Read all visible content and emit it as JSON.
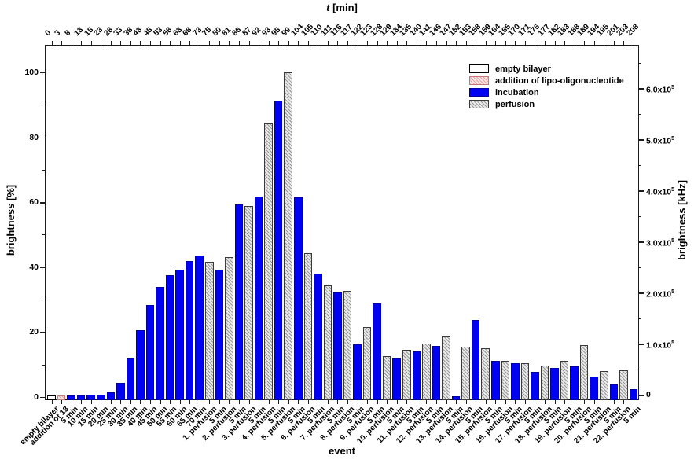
{
  "figure": {
    "top_axis_title": {
      "symbol": "t",
      "unit": "[min]"
    },
    "left_axis_title": "brightness [%]",
    "right_axis_title": "brightness [kHz]",
    "bottom_axis_title": "event"
  },
  "legend": {
    "items": [
      {
        "key": "empty",
        "label": "empty bilayer"
      },
      {
        "key": "addition",
        "label": "addition of lipo-oligonucleotide"
      },
      {
        "key": "incubation",
        "label": "incubation"
      },
      {
        "key": "perfusion",
        "label": "perfusion"
      }
    ]
  },
  "colors": {
    "incubation_blue": "#0000f2",
    "perfusion_hatch_gray": "#9a9a9a",
    "addition_hatch_pink": "#e8a2a2",
    "axis_black": "#1c1c1c",
    "background": "#ffffff"
  },
  "chart_data": {
    "type": "bar",
    "title": "",
    "xlabel_top": "t [min]",
    "xlabel_bottom": "event",
    "ylabel_left": "brightness [%]",
    "ylabel_right": "brightness [kHz]",
    "ylim_left": [
      -1,
      108
    ],
    "grid": false,
    "legend_position": "top-right-inside",
    "left_ticks_pct": [
      0,
      20,
      40,
      60,
      80,
      100
    ],
    "left_minor_ticks_pct": [
      10,
      30,
      50,
      70,
      90
    ],
    "right_ticks": [
      {
        "label": "0",
        "value_1e5_kHz": 0
      },
      {
        "label": "1.0x10^5",
        "value_1e5_kHz": 1
      },
      {
        "label": "2.0x10^5",
        "value_1e5_kHz": 2
      },
      {
        "label": "3.0x10^5",
        "value_1e5_kHz": 3
      },
      {
        "label": "4.0x10^5",
        "value_1e5_kHz": 4
      },
      {
        "label": "5.0x10^5",
        "value_1e5_kHz": 5
      },
      {
        "label": "6.0x10^5",
        "value_1e5_kHz": 6
      }
    ],
    "right_minor_ticks_1e5_kHz": [
      0.5,
      1.5,
      2.5,
      3.5,
      4.5,
      5.5,
      6.5
    ],
    "bars": [
      {
        "t_min": 0,
        "event": "empty bilayer",
        "phase": "empty",
        "brightness_pct": 0.5
      },
      {
        "t_min": 3,
        "event": "addition of 13",
        "phase": "addition",
        "brightness_pct": 0.5
      },
      {
        "t_min": 8,
        "event": "5 min",
        "phase": "incubation",
        "brightness_pct": 0.5
      },
      {
        "t_min": 13,
        "event": "10 min",
        "phase": "incubation",
        "brightness_pct": 0.5
      },
      {
        "t_min": 18,
        "event": "15 min",
        "phase": "incubation",
        "brightness_pct": 0.6
      },
      {
        "t_min": 23,
        "event": "20 min",
        "phase": "incubation",
        "brightness_pct": 0.7
      },
      {
        "t_min": 28,
        "event": "25 min",
        "phase": "incubation",
        "brightness_pct": 1.5
      },
      {
        "t_min": 33,
        "event": "30 min",
        "phase": "incubation",
        "brightness_pct": 4.4
      },
      {
        "t_min": 38,
        "event": "35 min",
        "phase": "incubation",
        "brightness_pct": 12.1
      },
      {
        "t_min": 43,
        "event": "40 min",
        "phase": "incubation",
        "brightness_pct": 20.6
      },
      {
        "t_min": 48,
        "event": "45 min",
        "phase": "incubation",
        "brightness_pct": 28.3
      },
      {
        "t_min": 53,
        "event": "50 min",
        "phase": "incubation",
        "brightness_pct": 33.9
      },
      {
        "t_min": 58,
        "event": "55 min",
        "phase": "incubation",
        "brightness_pct": 37.5
      },
      {
        "t_min": 63,
        "event": "60 min",
        "phase": "incubation",
        "brightness_pct": 39.2
      },
      {
        "t_min": 68,
        "event": "65 min",
        "phase": "incubation",
        "brightness_pct": 41.9
      },
      {
        "t_min": 73,
        "event": "70 min",
        "phase": "incubation",
        "brightness_pct": 43.6
      },
      {
        "t_min": 75,
        "event": "1. perfusion",
        "phase": "perfusion",
        "brightness_pct": 41.6
      },
      {
        "t_min": 80,
        "event": "5 min",
        "phase": "incubation",
        "brightness_pct": 39.2
      },
      {
        "t_min": 81,
        "event": "2. perfusion",
        "phase": "perfusion",
        "brightness_pct": 43.1
      },
      {
        "t_min": 86,
        "event": "5 min",
        "phase": "incubation",
        "brightness_pct": 59.3
      },
      {
        "t_min": 87,
        "event": "3. perfusion",
        "phase": "perfusion",
        "brightness_pct": 58.8
      },
      {
        "t_min": 92,
        "event": "5 min",
        "phase": "incubation",
        "brightness_pct": 61.7
      },
      {
        "t_min": 93,
        "event": "4. perfusion",
        "phase": "perfusion",
        "brightness_pct": 84.3
      },
      {
        "t_min": 98,
        "event": "5 min",
        "phase": "incubation",
        "brightness_pct": 91.3
      },
      {
        "t_min": 99,
        "event": "5. perfusion",
        "phase": "perfusion",
        "brightness_pct": 100
      },
      {
        "t_min": 104,
        "event": "5 min",
        "phase": "incubation",
        "brightness_pct": 61.5
      },
      {
        "t_min": 105,
        "event": "6. perfusion",
        "phase": "perfusion",
        "brightness_pct": 44.3
      },
      {
        "t_min": 110,
        "event": "5 min",
        "phase": "incubation",
        "brightness_pct": 38.0
      },
      {
        "t_min": 111,
        "event": "7. perfusion",
        "phase": "perfusion",
        "brightness_pct": 34.4
      },
      {
        "t_min": 116,
        "event": "5 min",
        "phase": "incubation",
        "brightness_pct": 32.2
      },
      {
        "t_min": 117,
        "event": "8. perfusion",
        "phase": "perfusion",
        "brightness_pct": 32.7
      },
      {
        "t_min": 122,
        "event": "5 min",
        "phase": "incubation",
        "brightness_pct": 16.2
      },
      {
        "t_min": 123,
        "event": "9. perfusion",
        "phase": "perfusion",
        "brightness_pct": 21.5
      },
      {
        "t_min": 128,
        "event": "5 min",
        "phase": "incubation",
        "brightness_pct": 28.8
      },
      {
        "t_min": 129,
        "event": "10. perfusion",
        "phase": "perfusion",
        "brightness_pct": 12.6
      },
      {
        "t_min": 134,
        "event": "5 min",
        "phase": "incubation",
        "brightness_pct": 12.1
      },
      {
        "t_min": 135,
        "event": "11. perfusion",
        "phase": "perfusion",
        "brightness_pct": 14.5
      },
      {
        "t_min": 140,
        "event": "5 min",
        "phase": "incubation",
        "brightness_pct": 14.0
      },
      {
        "t_min": 141,
        "event": "12. perfusion",
        "phase": "perfusion",
        "brightness_pct": 16.5
      },
      {
        "t_min": 146,
        "event": "5 min",
        "phase": "incubation",
        "brightness_pct": 15.7
      },
      {
        "t_min": 147,
        "event": "13. perfusion",
        "phase": "perfusion",
        "brightness_pct": 18.6
      },
      {
        "t_min": 152,
        "event": "5 min",
        "phase": "incubation",
        "brightness_pct": 0.2
      },
      {
        "t_min": 153,
        "event": "14. perfusion",
        "phase": "perfusion",
        "brightness_pct": 15.5
      },
      {
        "t_min": 158,
        "event": "5 min",
        "phase": "incubation",
        "brightness_pct": 23.7
      },
      {
        "t_min": 159,
        "event": "15. perfusion",
        "phase": "perfusion",
        "brightness_pct": 15.0
      },
      {
        "t_min": 164,
        "event": "5 min",
        "phase": "incubation",
        "brightness_pct": 11.2
      },
      {
        "t_min": 165,
        "event": "16. perfusion",
        "phase": "perfusion",
        "brightness_pct": 11.0
      },
      {
        "t_min": 170,
        "event": "5 min",
        "phase": "incubation",
        "brightness_pct": 10.4
      },
      {
        "t_min": 171,
        "event": "17. perfusion",
        "phase": "perfusion",
        "brightness_pct": 10.4
      },
      {
        "t_min": 176,
        "event": "5 min",
        "phase": "incubation",
        "brightness_pct": 7.7
      },
      {
        "t_min": 177,
        "event": "18. perfusion",
        "phase": "perfusion",
        "brightness_pct": 9.7
      },
      {
        "t_min": 182,
        "event": "5 min",
        "phase": "incubation",
        "brightness_pct": 9.0
      },
      {
        "t_min": 183,
        "event": "19. perfusion",
        "phase": "perfusion",
        "brightness_pct": 11.1
      },
      {
        "t_min": 188,
        "event": "5 min",
        "phase": "incubation",
        "brightness_pct": 9.4
      },
      {
        "t_min": 189,
        "event": "20. perfusion",
        "phase": "perfusion",
        "brightness_pct": 16.0
      },
      {
        "t_min": 194,
        "event": "5 min",
        "phase": "incubation",
        "brightness_pct": 6.3
      },
      {
        "t_min": 195,
        "event": "21. perfusion",
        "phase": "perfusion",
        "brightness_pct": 8.0
      },
      {
        "t_min": 201,
        "event": "5 min",
        "phase": "incubation",
        "brightness_pct": 3.9
      },
      {
        "t_min": 203,
        "event": "22. perfusion",
        "phase": "perfusion",
        "brightness_pct": 8.2
      },
      {
        "t_min": 208,
        "event": "5 min",
        "phase": "incubation",
        "brightness_pct": 2.4
      }
    ]
  }
}
